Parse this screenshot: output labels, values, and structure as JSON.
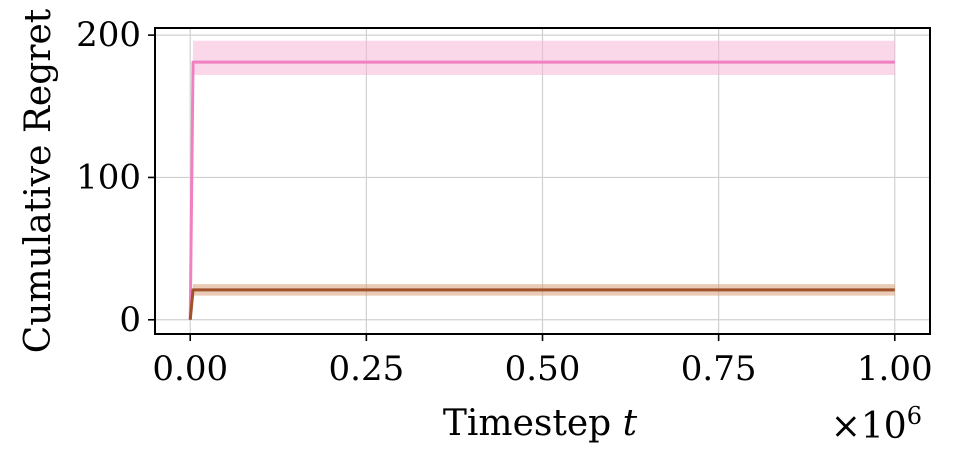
{
  "chart_data": {
    "type": "line",
    "xlabel": "Timestep",
    "xlabel_var": "t",
    "ylabel": "Cumulative Regret",
    "x_multiplier": "×10",
    "x_multiplier_exp": "6",
    "xlim": [
      -0.05,
      1.05
    ],
    "ylim": [
      -10,
      205
    ],
    "x_ticks": [
      0.0,
      0.25,
      0.5,
      0.75,
      1.0
    ],
    "x_tick_labels": [
      "0.00",
      "0.25",
      "0.50",
      "0.75",
      "1.00"
    ],
    "y_ticks": [
      0,
      100,
      200
    ],
    "y_tick_labels": [
      "0",
      "100",
      "200"
    ],
    "grid": true,
    "series": [
      {
        "color": "#f080c0",
        "band_color": "#f7b6d8",
        "x": [
          0.0,
          0.004,
          1.0
        ],
        "y": [
          0,
          181,
          181
        ],
        "band_upper": [
          0,
          196,
          196
        ],
        "band_lower": [
          0,
          172,
          172
        ]
      },
      {
        "color": "#a0522d",
        "band_color": "#d9a07a",
        "x": [
          0.0,
          0.004,
          1.0
        ],
        "y": [
          0,
          21,
          21
        ],
        "band_upper": [
          0,
          25,
          25
        ],
        "band_lower": [
          0,
          17,
          17
        ]
      }
    ]
  }
}
